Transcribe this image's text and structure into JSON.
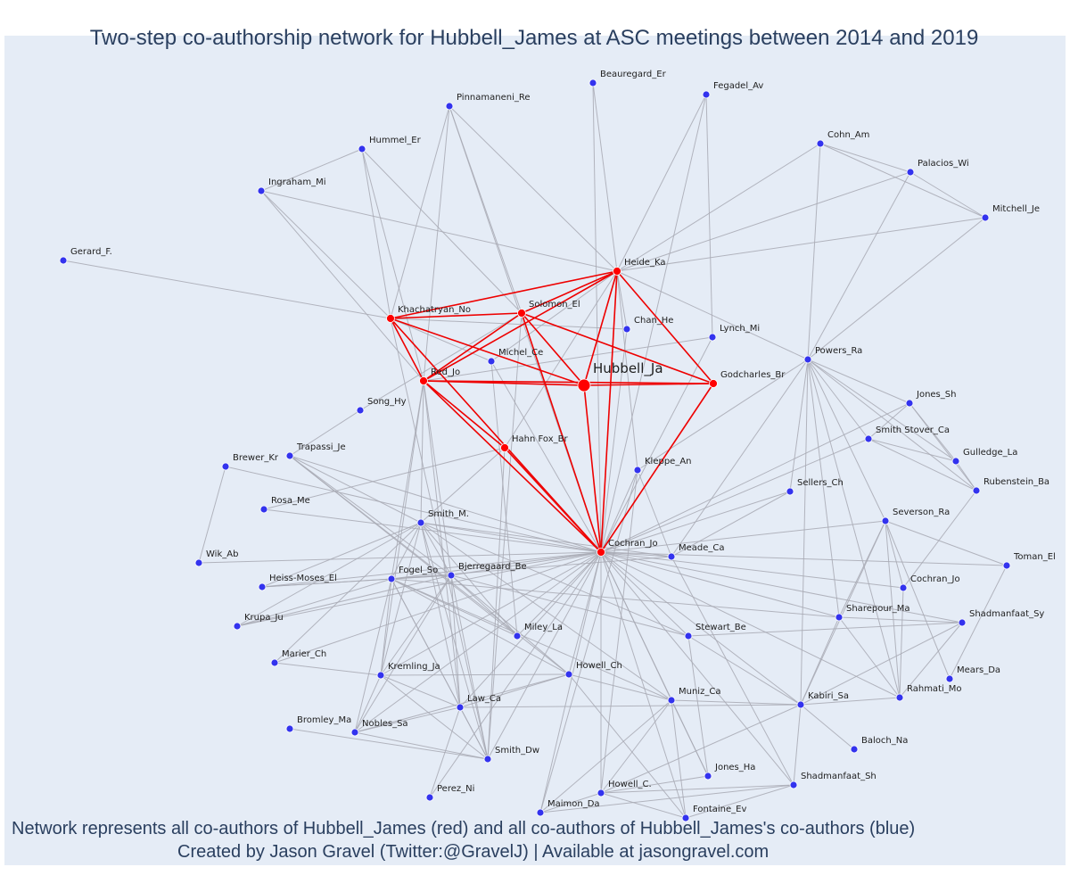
{
  "title": "Two-step co-authorship network for Hubbell_James at ASC meetings between 2014 and 2019",
  "captions": [
    "Network represents all co-authors of Hubbell_James (red) and all co-authors of Hubbell_James's co-authors (blue)",
    "Created by Jason Gravel (Twitter:@GravelJ) | Available at jasongravel.com"
  ],
  "colors": {
    "primary": "#ff0000",
    "secondary": "#3333ee",
    "edge_primary": "#ee0000",
    "edge_secondary": "#a8aab4",
    "background": "#e5ecf6",
    "text": "#2a3f5f"
  },
  "focal_node": "Hubbell_Ja",
  "nodes": [
    {
      "id": "Hubbell_Ja",
      "group": "focal"
    },
    {
      "id": "Heide_Ka",
      "group": "coauthor"
    },
    {
      "id": "Khachatryan_No",
      "group": "coauthor"
    },
    {
      "id": "Solomon_El",
      "group": "coauthor"
    },
    {
      "id": "Red_Jo",
      "group": "coauthor"
    },
    {
      "id": "Godcharles_Br",
      "group": "coauthor"
    },
    {
      "id": "Hahn Fox_Br",
      "group": "coauthor"
    },
    {
      "id": "Cochran_Jo",
      "group": "coauthor"
    },
    {
      "id": "Beauregard_Er",
      "group": "second"
    },
    {
      "id": "Fegadel_Av",
      "group": "second"
    },
    {
      "id": "Pinnamaneni_Re",
      "group": "second"
    },
    {
      "id": "Hummel_Er",
      "group": "second"
    },
    {
      "id": "Ingraham_Mi",
      "group": "second"
    },
    {
      "id": "Cohn_Am",
      "group": "second"
    },
    {
      "id": "Palacios_Wi",
      "group": "second"
    },
    {
      "id": "Mitchell_Je",
      "group": "second"
    },
    {
      "id": "Gerard_F.",
      "group": "second"
    },
    {
      "id": "Chan_He",
      "group": "second"
    },
    {
      "id": "Lynch_Mi",
      "group": "second"
    },
    {
      "id": "Michel_Ce",
      "group": "second"
    },
    {
      "id": "Powers_Ra",
      "group": "second"
    },
    {
      "id": "Song_Hy",
      "group": "second"
    },
    {
      "id": "Jones_Sh",
      "group": "second"
    },
    {
      "id": "Smith Stover_Ca",
      "group": "second"
    },
    {
      "id": "Gulledge_La",
      "group": "second"
    },
    {
      "id": "Trapassi_Je",
      "group": "second"
    },
    {
      "id": "Brewer_Kr",
      "group": "second"
    },
    {
      "id": "Kleppe_An",
      "group": "second"
    },
    {
      "id": "Sellers_Ch",
      "group": "second"
    },
    {
      "id": "Rubenstein_Ba",
      "group": "second"
    },
    {
      "id": "Rosa_Me",
      "group": "second"
    },
    {
      "id": "Smith_M.",
      "group": "second"
    },
    {
      "id": "Severson_Ra",
      "group": "second"
    },
    {
      "id": "Wik_Ab",
      "group": "second"
    },
    {
      "id": "Meade_Ca",
      "group": "second"
    },
    {
      "id": "Toman_El",
      "group": "second"
    },
    {
      "id": "Heiss-Moses_El",
      "group": "second"
    },
    {
      "id": "Fogel_So",
      "group": "second"
    },
    {
      "id": "Bjerregaard_Be",
      "group": "second"
    },
    {
      "id": "Cochran_Jo (2)",
      "label": "Cochran_Jo",
      "group": "second"
    },
    {
      "id": "Krupa_Ju",
      "group": "second"
    },
    {
      "id": "Sharepour_Ma",
      "group": "second"
    },
    {
      "id": "Shadmanfaat_Sy",
      "group": "second"
    },
    {
      "id": "Miley_La",
      "group": "second"
    },
    {
      "id": "Stewart_Be",
      "group": "second"
    },
    {
      "id": "Marier_Ch",
      "group": "second"
    },
    {
      "id": "Howell_Ch",
      "group": "second"
    },
    {
      "id": "Kremling_Ja",
      "group": "second"
    },
    {
      "id": "Mears_Da",
      "group": "second"
    },
    {
      "id": "Law_Ca",
      "group": "second"
    },
    {
      "id": "Muniz_Ca",
      "group": "second"
    },
    {
      "id": "Kabiri_Sa",
      "group": "second"
    },
    {
      "id": "Rahmati_Mo",
      "group": "second"
    },
    {
      "id": "Bromley_Ma",
      "group": "second"
    },
    {
      "id": "Nobles_Sa",
      "group": "second"
    },
    {
      "id": "Baloch_Na",
      "group": "second"
    },
    {
      "id": "Smith_Dw",
      "group": "second"
    },
    {
      "id": "Jones_Ha",
      "group": "second"
    },
    {
      "id": "Shadmanfaat_Sh",
      "group": "second"
    },
    {
      "id": "Howell_C.",
      "group": "second"
    },
    {
      "id": "Perez_Ni",
      "group": "second"
    },
    {
      "id": "Maimon_Da",
      "group": "second"
    },
    {
      "id": "Fontaine_Ev",
      "group": "second"
    }
  ],
  "edges_primary": [
    [
      "Hubbell_Ja",
      "Heide_Ka"
    ],
    [
      "Hubbell_Ja",
      "Khachatryan_No"
    ],
    [
      "Hubbell_Ja",
      "Solomon_El"
    ],
    [
      "Hubbell_Ja",
      "Red_Jo"
    ],
    [
      "Hubbell_Ja",
      "Godcharles_Br"
    ],
    [
      "Hubbell_Ja",
      "Cochran_Jo"
    ],
    [
      "Heide_Ka",
      "Khachatryan_No"
    ],
    [
      "Heide_Ka",
      "Solomon_El"
    ],
    [
      "Heide_Ka",
      "Red_Jo"
    ],
    [
      "Heide_Ka",
      "Godcharles_Br"
    ],
    [
      "Heide_Ka",
      "Cochran_Jo"
    ],
    [
      "Khachatryan_No",
      "Solomon_El"
    ],
    [
      "Khachatryan_No",
      "Red_Jo"
    ],
    [
      "Khachatryan_No",
      "Cochran_Jo"
    ],
    [
      "Solomon_El",
      "Red_Jo"
    ],
    [
      "Solomon_El",
      "Godcharles_Br"
    ],
    [
      "Solomon_El",
      "Cochran_Jo"
    ],
    [
      "Red_Jo",
      "Godcharles_Br"
    ],
    [
      "Red_Jo",
      "Cochran_Jo"
    ],
    [
      "Godcharles_Br",
      "Cochran_Jo"
    ],
    [
      "Hahn Fox_Br",
      "Cochran_Jo"
    ],
    [
      "Red_Jo",
      "Hahn Fox_Br"
    ]
  ],
  "edges_secondary": [
    [
      "Heide_Ka",
      "Beauregard_Er"
    ],
    [
      "Heide_Ka",
      "Fegadel_Av"
    ],
    [
      "Heide_Ka",
      "Pinnamaneni_Re"
    ],
    [
      "Heide_Ka",
      "Ingraham_Mi"
    ],
    [
      "Heide_Ka",
      "Cohn_Am"
    ],
    [
      "Heide_Ka",
      "Palacios_Wi"
    ],
    [
      "Heide_Ka",
      "Mitchell_Je"
    ],
    [
      "Heide_Ka",
      "Chan_He"
    ],
    [
      "Heide_Ka",
      "Michel_Ce"
    ],
    [
      "Heide_Ka",
      "Kleppe_An"
    ],
    [
      "Heide_Ka",
      "Powers_Ra"
    ],
    [
      "Heide_Ka",
      "Hahn Fox_Br"
    ],
    [
      "Cohn_Am",
      "Palacios_Wi"
    ],
    [
      "Cohn_Am",
      "Mitchell_Je"
    ],
    [
      "Palacios_Wi",
      "Mitchell_Je"
    ],
    [
      "Cohn_Am",
      "Powers_Ra"
    ],
    [
      "Palacios_Wi",
      "Powers_Ra"
    ],
    [
      "Mitchell_Je",
      "Powers_Ra"
    ],
    [
      "Khachatryan_No",
      "Gerard_F."
    ],
    [
      "Khachatryan_No",
      "Hummel_Er"
    ],
    [
      "Khachatryan_No",
      "Ingraham_Mi"
    ],
    [
      "Khachatryan_No",
      "Pinnamaneni_Re"
    ],
    [
      "Khachatryan_No",
      "Chan_He"
    ],
    [
      "Khachatryan_No",
      "Michel_Ce"
    ],
    [
      "Hummel_Er",
      "Ingraham_Mi"
    ],
    [
      "Hummel_Er",
      "Red_Jo"
    ],
    [
      "Ingraham_Mi",
      "Red_Jo"
    ],
    [
      "Hummel_Er",
      "Solomon_El"
    ],
    [
      "Pinnamaneni_Re",
      "Solomon_El"
    ],
    [
      "Pinnamaneni_Re",
      "Red_Jo"
    ],
    [
      "Pinnamaneni_Re",
      "Cochran_Jo"
    ],
    [
      "Beauregard_Er",
      "Cochran_Jo"
    ],
    [
      "Fegadel_Av",
      "Cochran_Jo"
    ],
    [
      "Chan_He",
      "Cochran_Jo"
    ],
    [
      "Lynch_Mi",
      "Cochran_Jo"
    ],
    [
      "Lynch_Mi",
      "Fegadel_Av"
    ],
    [
      "Lynch_Mi",
      "Red_Jo"
    ],
    [
      "Michel_Ce",
      "Cochran_Jo"
    ],
    [
      "Michel_Ce",
      "Miley_La"
    ],
    [
      "Song_Hy",
      "Solomon_El"
    ],
    [
      "Song_Hy",
      "Trapassi_Je"
    ],
    [
      "Red_Jo",
      "Smith_M."
    ],
    [
      "Red_Jo",
      "Fogel_So"
    ],
    [
      "Red_Jo",
      "Bjerregaard_Be"
    ],
    [
      "Red_Jo",
      "Law_Ca"
    ],
    [
      "Red_Jo",
      "Kremling_Ja"
    ],
    [
      "Solomon_El",
      "Smith_Dw"
    ],
    [
      "Khachatryan_No",
      "Smith_Dw"
    ],
    [
      "Hahn Fox_Br",
      "Smith_M."
    ],
    [
      "Hahn Fox_Br",
      "Rosa_Me"
    ],
    [
      "Hahn Fox_Br",
      "Smith_Dw"
    ],
    [
      "Brewer_Kr",
      "Wik_Ab"
    ],
    [
      "Brewer_Kr",
      "Cochran_Jo"
    ],
    [
      "Rosa_Me",
      "Cochran_Jo"
    ],
    [
      "Wik_Ab",
      "Cochran_Jo"
    ],
    [
      "Trapassi_Je",
      "Cochran_Jo"
    ],
    [
      "Trapassi_Je",
      "Smith_M."
    ],
    [
      "Trapassi_Je",
      "Bjerregaard_Be"
    ],
    [
      "Trapassi_Je",
      "Miley_La"
    ],
    [
      "Trapassi_Je",
      "Howell_Ch"
    ],
    [
      "Cochran_Jo",
      "Smith_M."
    ],
    [
      "Cochran_Jo",
      "Fogel_So"
    ],
    [
      "Cochran_Jo",
      "Bjerregaard_Be"
    ],
    [
      "Cochran_Jo",
      "Heiss-Moses_El"
    ],
    [
      "Cochran_Jo",
      "Krupa_Ju"
    ],
    [
      "Cochran_Jo",
      "Marier_Ch"
    ],
    [
      "Cochran_Jo",
      "Miley_La"
    ],
    [
      "Cochran_Jo",
      "Howell_Ch"
    ],
    [
      "Cochran_Jo",
      "Kremling_Ja"
    ],
    [
      "Cochran_Jo",
      "Law_Ca"
    ],
    [
      "Cochran_Jo",
      "Smith_Dw"
    ],
    [
      "Cochran_Jo",
      "Nobles_Sa"
    ],
    [
      "Cochran_Jo",
      "Muniz_Ca"
    ],
    [
      "Cochran_Jo",
      "Stewart_Be"
    ],
    [
      "Cochran_Jo",
      "Meade_Ca"
    ],
    [
      "Cochran_Jo",
      "Kleppe_An"
    ],
    [
      "Cochran_Jo",
      "Kabiri_Sa"
    ],
    [
      "Cochran_Jo",
      "Sharepour_Ma"
    ],
    [
      "Cochran_Jo",
      "Shadmanfaat_Sy"
    ],
    [
      "Cochran_Jo",
      "Severson_Ra"
    ],
    [
      "Cochran_Jo",
      "Sellers_Ch"
    ],
    [
      "Cochran_Jo",
      "Smith Stover_Ca"
    ],
    [
      "Cochran_Jo",
      "Jones_Sh"
    ],
    [
      "Cochran_Jo",
      "Toman_El"
    ],
    [
      "Cochran_Jo",
      "Rahmati_Mo"
    ],
    [
      "Cochran_Jo",
      "Jones_Ha"
    ],
    [
      "Cochran_Jo",
      "Shadmanfaat_Sh"
    ],
    [
      "Cochran_Jo",
      "Howell_C."
    ],
    [
      "Cochran_Jo",
      "Maimon_Da"
    ],
    [
      "Cochran_Jo",
      "Fontaine_Ev"
    ],
    [
      "Cochran_Jo",
      "Perez_Ni"
    ],
    [
      "Cochran_Jo",
      "Cochran_Jo (2)"
    ],
    [
      "Powers_Ra",
      "Jones_Sh"
    ],
    [
      "Powers_Ra",
      "Smith Stover_Ca"
    ],
    [
      "Powers_Ra",
      "Gulledge_La"
    ],
    [
      "Powers_Ra",
      "Rubenstein_Ba"
    ],
    [
      "Powers_Ra",
      "Sellers_Ch"
    ],
    [
      "Powers_Ra",
      "Severson_Ra"
    ],
    [
      "Powers_Ra",
      "Sharepour_Ma"
    ],
    [
      "Powers_Ra",
      "Kabiri_Sa"
    ],
    [
      "Powers_Ra",
      "Rahmati_Mo"
    ],
    [
      "Powers_Ra",
      "Meade_Ca"
    ],
    [
      "Powers_Ra",
      "Kleppe_An"
    ],
    [
      "Jones_Sh",
      "Smith Stover_Ca"
    ],
    [
      "Jones_Sh",
      "Gulledge_La"
    ],
    [
      "Smith Stover_Ca",
      "Gulledge_La"
    ],
    [
      "Smith Stover_Ca",
      "Rubenstein_Ba"
    ],
    [
      "Gulledge_La",
      "Rubenstein_Ba"
    ],
    [
      "Jones_Sh",
      "Rubenstein_Ba"
    ],
    [
      "Rubenstein_Ba",
      "Cochran_Jo (2)"
    ],
    [
      "Sellers_Ch",
      "Meade_Ca"
    ],
    [
      "Severson_Ra",
      "Toman_El"
    ],
    [
      "Severson_Ra",
      "Cochran_Jo (2)"
    ],
    [
      "Severson_Ra",
      "Sharepour_Ma"
    ],
    [
      "Severson_Ra",
      "Kabiri_Sa"
    ],
    [
      "Severson_Ra",
      "Rahmati_Mo"
    ],
    [
      "Severson_Ra",
      "Mears_Da"
    ],
    [
      "Toman_El",
      "Mears_Da"
    ],
    [
      "Cochran_Jo (2)",
      "Rahmati_Mo"
    ],
    [
      "Shadmanfaat_Sy",
      "Sharepour_Ma"
    ],
    [
      "Shadmanfaat_Sy",
      "Kabiri_Sa"
    ],
    [
      "Shadmanfaat_Sy",
      "Rahmati_Mo"
    ],
    [
      "Shadmanfaat_Sy",
      "Stewart_Be"
    ],
    [
      "Sharepour_Ma",
      "Kabiri_Sa"
    ],
    [
      "Sharepour_Ma",
      "Rahmati_Mo"
    ],
    [
      "Sharepour_Ma",
      "Fogel_So"
    ],
    [
      "Kabiri_Sa",
      "Rahmati_Mo"
    ],
    [
      "Kabiri_Sa",
      "Baloch_Na"
    ],
    [
      "Kabiri_Sa",
      "Shadmanfaat_Sh"
    ],
    [
      "Kabiri_Sa",
      "Muniz_Ca"
    ],
    [
      "Kabiri_Sa",
      "Law_Ca"
    ],
    [
      "Kabiri_Sa",
      "Howell_C."
    ],
    [
      "Kabiri_Sa",
      "Stewart_Be"
    ],
    [
      "Shadmanfaat_Sh",
      "Howell_C."
    ],
    [
      "Shadmanfaat_Sh",
      "Meade_Ca"
    ],
    [
      "Shadmanfaat_Sh",
      "Maimon_Da"
    ],
    [
      "Meade_Ca",
      "Kleppe_An"
    ],
    [
      "Meade_Ca",
      "Fogel_So"
    ],
    [
      "Meade_Ca",
      "Smith_M."
    ],
    [
      "Kleppe_An",
      "Howell_C."
    ],
    [
      "Muniz_Ca",
      "Howell_Ch"
    ],
    [
      "Muniz_Ca",
      "Jones_Ha"
    ],
    [
      "Muniz_Ca",
      "Fontaine_Ev"
    ],
    [
      "Muniz_Ca",
      "Howell_C."
    ],
    [
      "Muniz_Ca",
      "Maimon_Da"
    ],
    [
      "Muniz_Ca",
      "Fogel_So"
    ],
    [
      "Muniz_Ca",
      "Smith_M."
    ],
    [
      "Howell_Ch",
      "Kremling_Ja"
    ],
    [
      "Howell_Ch",
      "Law_Ca"
    ],
    [
      "Howell_Ch",
      "Bjerregaard_Be"
    ],
    [
      "Howell_Ch",
      "Fogel_So"
    ],
    [
      "Howell_Ch",
      "Fontaine_Ev"
    ],
    [
      "Howell_Ch",
      "Nobles_Sa"
    ],
    [
      "Miley_La",
      "Smith_M."
    ],
    [
      "Miley_La",
      "Fogel_So"
    ],
    [
      "Miley_La",
      "Bjerregaard_Be"
    ],
    [
      "Stewart_Be",
      "Bjerregaard_Be"
    ],
    [
      "Stewart_Be",
      "Smith_M."
    ],
    [
      "Smith_M.",
      "Heiss-Moses_El"
    ],
    [
      "Smith_M.",
      "Krupa_Ju"
    ],
    [
      "Smith_M.",
      "Fogel_So"
    ],
    [
      "Smith_M.",
      "Bjerregaard_Be"
    ],
    [
      "Smith_M.",
      "Kremling_Ja"
    ],
    [
      "Smith_M.",
      "Law_Ca"
    ],
    [
      "Smith_M.",
      "Marier_Ch"
    ],
    [
      "Smith_M.",
      "Smith_Dw"
    ],
    [
      "Fogel_So",
      "Heiss-Moses_El"
    ],
    [
      "Fogel_So",
      "Krupa_Ju"
    ],
    [
      "Fogel_So",
      "Bjerregaard_Be"
    ],
    [
      "Fogel_So",
      "Kremling_Ja"
    ],
    [
      "Fogel_So",
      "Law_Ca"
    ],
    [
      "Fogel_So",
      "Nobles_Sa"
    ],
    [
      "Fogel_So",
      "Smith_Dw"
    ],
    [
      "Bjerregaard_Be",
      "Heiss-Moses_El"
    ],
    [
      "Bjerregaard_Be",
      "Krupa_Ju"
    ],
    [
      "Bjerregaard_Be",
      "Kremling_Ja"
    ],
    [
      "Bjerregaard_Be",
      "Law_Ca"
    ],
    [
      "Bjerregaard_Be",
      "Smith_Dw"
    ],
    [
      "Bjerregaard_Be",
      "Nobles_Sa"
    ],
    [
      "Kremling_Ja",
      "Law_Ca"
    ],
    [
      "Kremling_Ja",
      "Smith_Dw"
    ],
    [
      "Kremling_Ja",
      "Nobles_Sa"
    ],
    [
      "Kremling_Ja",
      "Marier_Ch"
    ],
    [
      "Law_Ca",
      "Smith_Dw"
    ],
    [
      "Law_Ca",
      "Nobles_Sa"
    ],
    [
      "Nobles_Sa",
      "Smith_Dw"
    ],
    [
      "Bromley_Ma",
      "Smith_Dw"
    ],
    [
      "Perez_Ni",
      "Law_Ca"
    ],
    [
      "Howell_C.",
      "Maimon_Da"
    ],
    [
      "Howell_C.",
      "Jones_Ha"
    ],
    [
      "Howell_C.",
      "Fontaine_Ev"
    ],
    [
      "Fontaine_Ev",
      "Shadmanfaat_Sh"
    ],
    [
      "Maimon_Da",
      "Kleppe_An"
    ],
    [
      "Jones_Ha",
      "Stewart_Be"
    ]
  ]
}
